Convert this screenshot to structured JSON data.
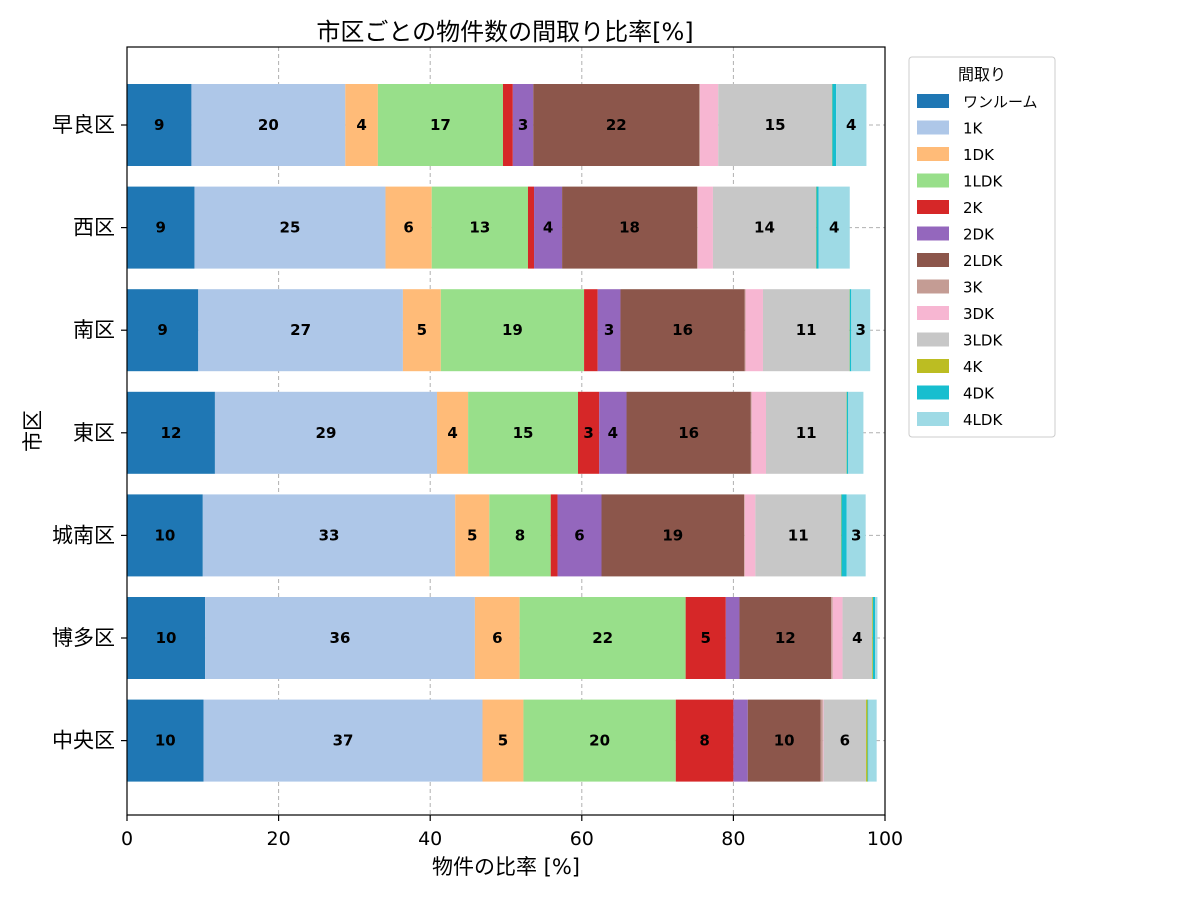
{
  "chart_data": {
    "type": "bar",
    "orientation": "horizontal",
    "stacked": true,
    "title": "市区ごとの物件数の間取り比率[%]",
    "xlabel": "物件の比率 [%]",
    "ylabel": "市区",
    "xlim": [
      0,
      100
    ],
    "xticks": [
      "0",
      "20",
      "40",
      "60",
      "80",
      "100"
    ],
    "grid": true,
    "legend_title": "間取り",
    "legend_position": "outside-top-right",
    "categories": [
      "早良区",
      "西区",
      "南区",
      "東区",
      "城南区",
      "博多区",
      "中央区"
    ],
    "series": [
      {
        "name": "ワンルーム",
        "color": "#1f77b4",
        "values": [
          8.5,
          8.9,
          9.4,
          11.6,
          10.0,
          10.3,
          10.1
        ]
      },
      {
        "name": "1K",
        "color": "#aec7e8",
        "values": [
          20.3,
          25.2,
          27.0,
          29.3,
          33.3,
          35.6,
          36.8
        ]
      },
      {
        "name": "1DK",
        "color": "#ffbb78",
        "values": [
          4.3,
          6.1,
          5.0,
          4.1,
          4.5,
          5.9,
          5.4
        ]
      },
      {
        "name": "1LDK",
        "color": "#98df8a",
        "values": [
          16.5,
          12.7,
          18.9,
          14.5,
          8.1,
          21.9,
          20.1
        ]
      },
      {
        "name": "2K",
        "color": "#d62728",
        "values": [
          1.3,
          0.8,
          1.8,
          2.8,
          0.9,
          5.3,
          7.6
        ]
      },
      {
        "name": "2DK",
        "color": "#9467bd",
        "values": [
          2.7,
          3.7,
          3.0,
          3.6,
          5.8,
          1.8,
          1.9
        ]
      },
      {
        "name": "2LDK",
        "color": "#8c564b",
        "values": [
          21.9,
          17.8,
          16.4,
          16.4,
          18.8,
          12.1,
          9.6
        ]
      },
      {
        "name": "3K",
        "color": "#c49c94",
        "values": [
          0.1,
          0.1,
          0.1,
          0.1,
          0.1,
          0.2,
          0.3
        ]
      },
      {
        "name": "3DK",
        "color": "#f7b6d2",
        "values": [
          2.4,
          2.0,
          2.3,
          1.9,
          1.4,
          1.3,
          0.1
        ]
      },
      {
        "name": "3LDK",
        "color": "#c7c7c7",
        "values": [
          15.0,
          13.6,
          11.4,
          10.6,
          11.3,
          3.9,
          5.6
        ]
      },
      {
        "name": "4K",
        "color": "#bcbd22",
        "values": [
          0.05,
          0.05,
          0.05,
          0.05,
          0.05,
          0.1,
          0.2
        ]
      },
      {
        "name": "4DK",
        "color": "#17becf",
        "values": [
          0.5,
          0.3,
          0.2,
          0.2,
          0.7,
          0.3,
          0.1
        ]
      },
      {
        "name": "4LDK",
        "color": "#9edae5",
        "values": [
          4.0,
          4.1,
          2.5,
          2.0,
          2.5,
          0.3,
          1.1
        ]
      }
    ]
  }
}
